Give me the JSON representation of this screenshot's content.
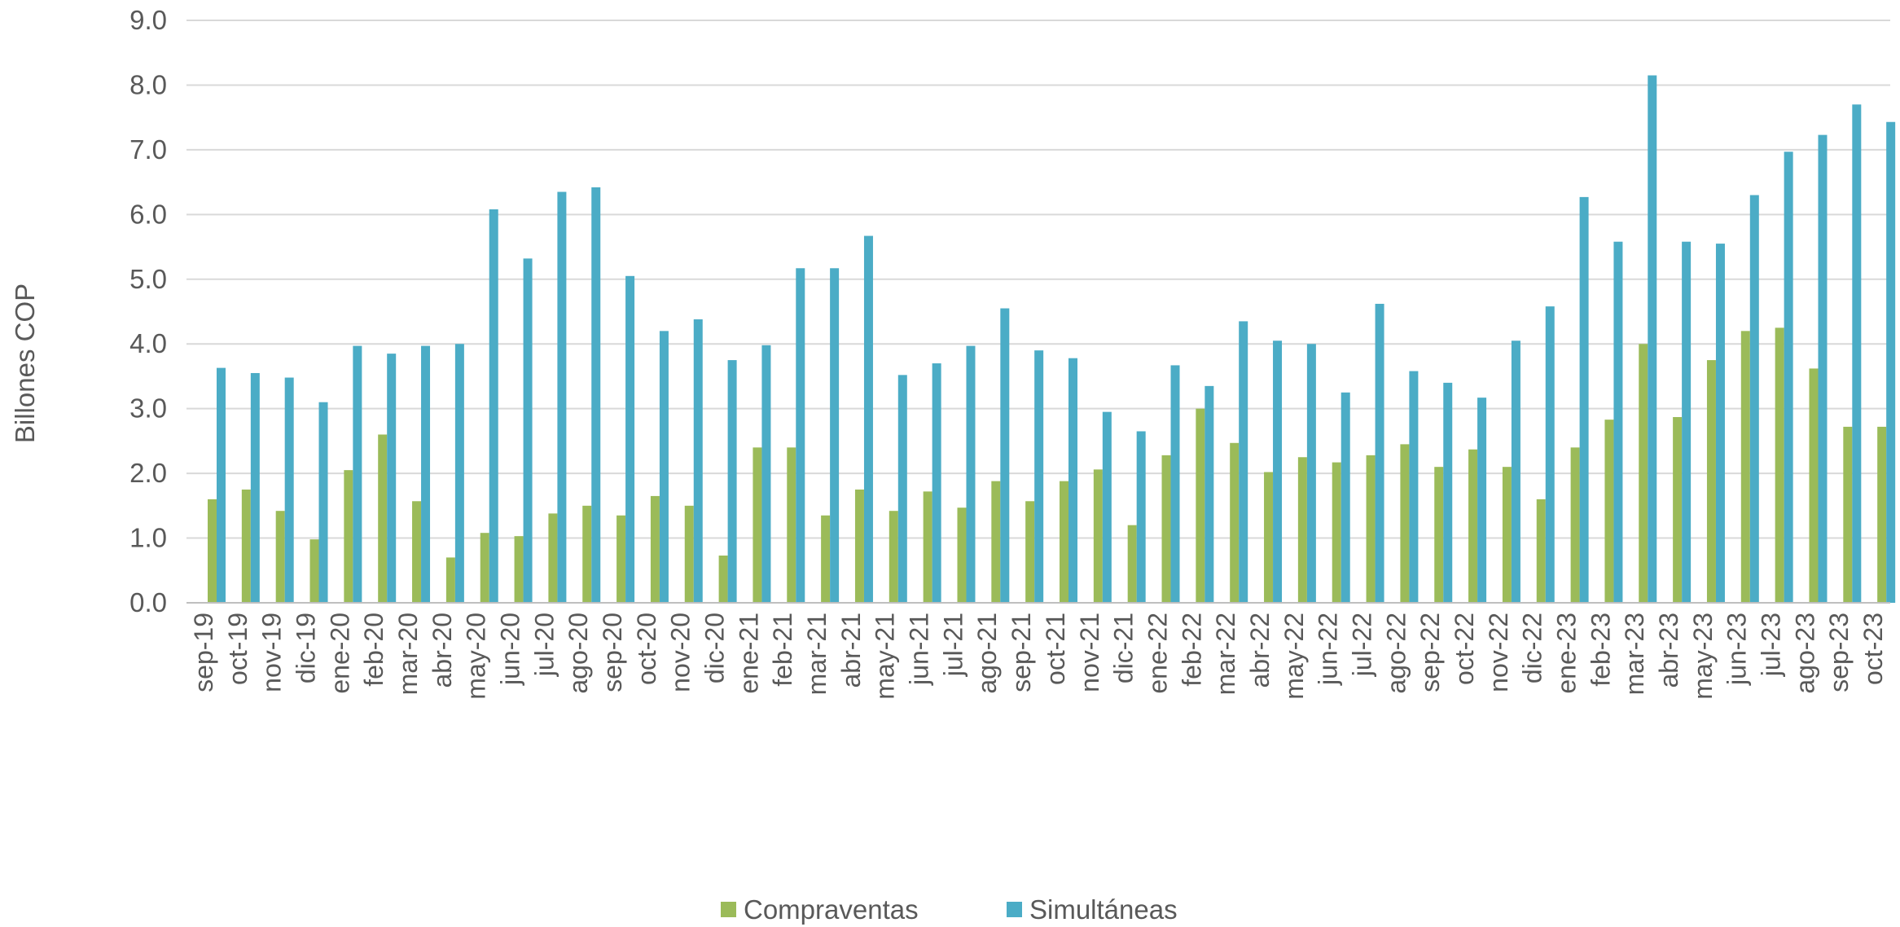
{
  "chart_data": {
    "type": "bar",
    "title": "",
    "xlabel": "",
    "ylabel": "Billones COP",
    "ylim": [
      0,
      9
    ],
    "yticks": [
      "0.0",
      "1.0",
      "2.0",
      "3.0",
      "4.0",
      "5.0",
      "6.0",
      "7.0",
      "8.0",
      "9.0"
    ],
    "grid": true,
    "legend_position": "bottom",
    "categories": [
      "sep-19",
      "oct-19",
      "nov-19",
      "dic-19",
      "ene-20",
      "feb-20",
      "mar-20",
      "abr-20",
      "may-20",
      "jun-20",
      "jul-20",
      "ago-20",
      "sep-20",
      "oct-20",
      "nov-20",
      "dic-20",
      "ene-21",
      "feb-21",
      "mar-21",
      "abr-21",
      "may-21",
      "jun-21",
      "jul-21",
      "ago-21",
      "sep-21",
      "oct-21",
      "nov-21",
      "dic-21",
      "ene-22",
      "feb-22",
      "mar-22",
      "abr-22",
      "may-22",
      "jun-22",
      "jul-22",
      "ago-22",
      "sep-22",
      "oct-22",
      "nov-22",
      "dic-22",
      "ene-23",
      "feb-23",
      "mar-23",
      "abr-23",
      "may-23",
      "jun-23",
      "jul-23",
      "ago-23",
      "sep-23",
      "oct-23"
    ],
    "series": [
      {
        "name": "Compraventas",
        "color": "#9bbb59",
        "values": [
          1.6,
          1.75,
          1.42,
          0.98,
          2.05,
          2.6,
          1.57,
          0.7,
          1.08,
          1.03,
          1.38,
          1.5,
          1.35,
          1.65,
          1.5,
          0.73,
          2.4,
          2.4,
          1.35,
          1.75,
          1.42,
          1.72,
          1.47,
          1.88,
          1.57,
          1.88,
          2.06,
          1.2,
          2.28,
          3.0,
          2.47,
          2.02,
          2.25,
          2.17,
          2.28,
          2.45,
          2.1,
          2.37,
          2.1,
          1.6,
          2.4,
          2.83,
          4.0,
          2.87,
          3.75,
          4.2,
          4.25,
          3.62,
          2.72,
          2.72
        ]
      },
      {
        "name": "Simultáneas",
        "color": "#4bacc6",
        "values": [
          3.63,
          3.55,
          3.48,
          3.1,
          3.97,
          3.85,
          3.97,
          4.0,
          6.08,
          5.32,
          6.35,
          6.42,
          5.05,
          4.2,
          4.38,
          3.75,
          3.98,
          5.17,
          5.17,
          5.67,
          3.52,
          3.7,
          3.97,
          4.55,
          3.9,
          3.78,
          2.95,
          2.65,
          3.67,
          3.35,
          4.35,
          4.05,
          4.0,
          3.25,
          4.62,
          3.58,
          3.4,
          3.17,
          4.05,
          4.58,
          6.27,
          5.58,
          8.15,
          5.58,
          5.55,
          6.3,
          6.97,
          7.23,
          7.7,
          7.43
        ]
      }
    ]
  }
}
